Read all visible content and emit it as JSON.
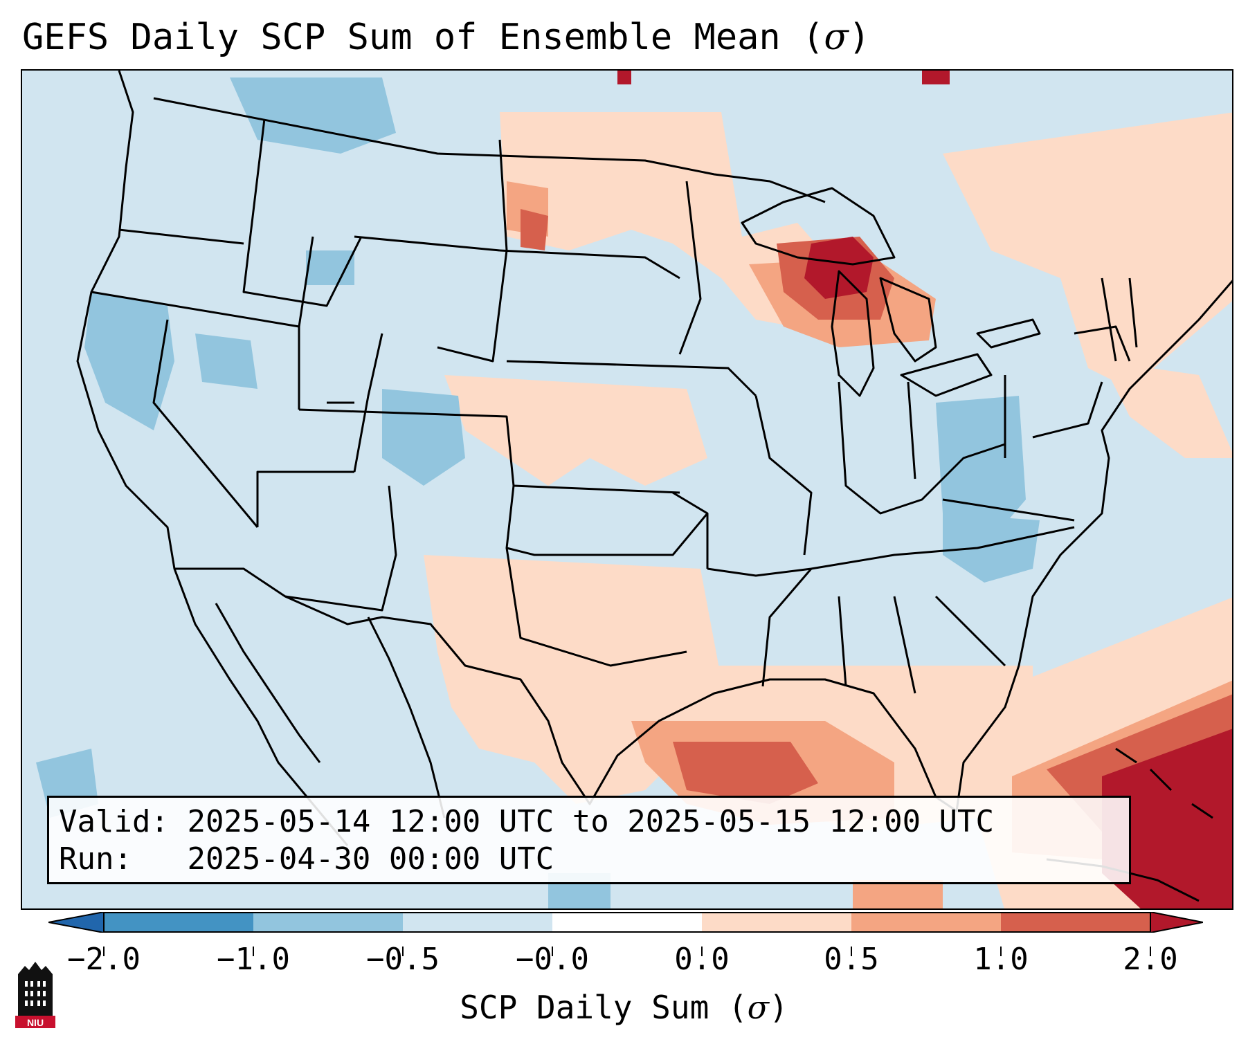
{
  "title": {
    "text": "GEFS Daily SCP Sum of Ensemble Mean (",
    "symbol": "σ",
    "close": ")"
  },
  "info": {
    "valid_label": "Valid:",
    "valid_value": "2025-05-14 12:00 UTC to 2025-05-15 12:00 UTC",
    "run_label": "Run:",
    "run_value": "2025-04-30 00:00 UTC"
  },
  "colorbar": {
    "label_text": "SCP Daily Sum (",
    "label_symbol": "σ",
    "label_close": ")",
    "ticks": [
      "−2.0",
      "−1.0",
      "−0.5",
      "−0.0",
      "0.0",
      "0.5",
      "1.0",
      "2.0"
    ],
    "bins": [
      {
        "range": "< -2.0",
        "color": "#2166ac"
      },
      {
        "range": "-2.0 to -1.0",
        "color": "#4393c3"
      },
      {
        "range": "-1.0 to -0.5",
        "color": "#92c5de"
      },
      {
        "range": "-0.5 to 0.0",
        "color": "#d1e5f0"
      },
      {
        "range": "0.0",
        "color": "#ffffff"
      },
      {
        "range": "0.0 to 0.5",
        "color": "#fddbc7"
      },
      {
        "range": "0.5 to 1.0",
        "color": "#f4a582"
      },
      {
        "range": "1.0 to 2.0",
        "color": "#d6604d"
      },
      {
        "range": "> 2.0",
        "color": "#b2182b"
      }
    ]
  },
  "map": {
    "region": "Contiguous United States",
    "features": [
      {
        "name": "Upper Michigan / Lake Superior",
        "level": "> 2.0"
      },
      {
        "name": "Gulf of Mexico (north)",
        "level": "1.0 to 2.0"
      },
      {
        "name": "Bahamas / western Atlantic",
        "level": "> 2.0"
      },
      {
        "name": "Carolinas",
        "level": "-1.0 to -0.5"
      },
      {
        "name": "Southern Plains / Texas",
        "level": "0.0 to 0.5"
      },
      {
        "name": "Western U.S.",
        "level": "-0.5 to 0.0"
      }
    ]
  },
  "logo": {
    "text": "NIU"
  }
}
